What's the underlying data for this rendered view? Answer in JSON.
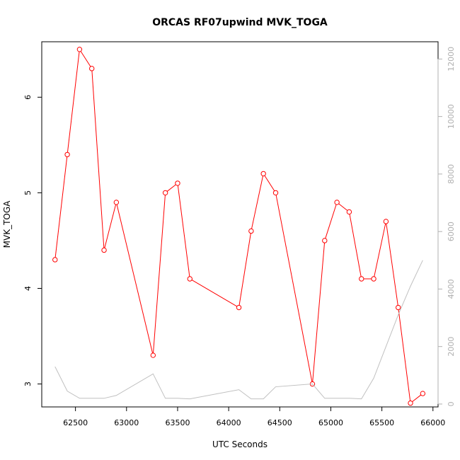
{
  "chart_data": {
    "type": "line",
    "title": "ORCAS RF07upwind MVK_TOGA",
    "xlabel": "UTC Seconds",
    "ylabel": "MVK_TOGA",
    "xlim": [
      62170,
      66050
    ],
    "ylim": [
      2.76,
      6.58
    ],
    "y2lim": [
      -100,
      12600
    ],
    "x_ticks": [
      62500,
      63000,
      63500,
      64000,
      64500,
      65000,
      65500,
      66000
    ],
    "y_ticks": [
      3,
      4,
      5,
      6
    ],
    "y2_ticks": [
      0,
      2000,
      4000,
      6000,
      8000,
      10000,
      12000
    ],
    "series": [
      {
        "axis": "left",
        "color": "#ff0000",
        "style": "line-with-open-circles",
        "x": [
          62300,
          62420,
          62540,
          62660,
          62780,
          62900,
          63260,
          63380,
          63500,
          63620,
          64100,
          64220,
          64340,
          64460,
          64820,
          64940,
          65060,
          65180,
          65300,
          65420,
          65540,
          65660,
          65780,
          65900
        ],
        "y": [
          4.3,
          5.4,
          6.5,
          6.3,
          4.4,
          4.9,
          3.3,
          5.0,
          5.1,
          4.1,
          3.8,
          4.6,
          5.2,
          5.0,
          3.0,
          4.5,
          4.9,
          4.8,
          4.1,
          4.1,
          4.7,
          3.8,
          2.8,
          2.9
        ]
      },
      {
        "axis": "right",
        "color": "#c0c0c0",
        "style": "line",
        "x": [
          62300,
          62420,
          62540,
          62660,
          62780,
          62900,
          63260,
          63380,
          63500,
          63620,
          64100,
          64220,
          64340,
          64460,
          64820,
          64940,
          65060,
          65180,
          65300,
          65420,
          65540,
          65660,
          65780,
          65900
        ],
        "y": [
          1300,
          450,
          200,
          200,
          200,
          300,
          1050,
          200,
          200,
          180,
          500,
          180,
          180,
          600,
          700,
          200,
          200,
          200,
          180,
          900,
          2000,
          3100,
          4100,
          5000
        ]
      }
    ]
  }
}
